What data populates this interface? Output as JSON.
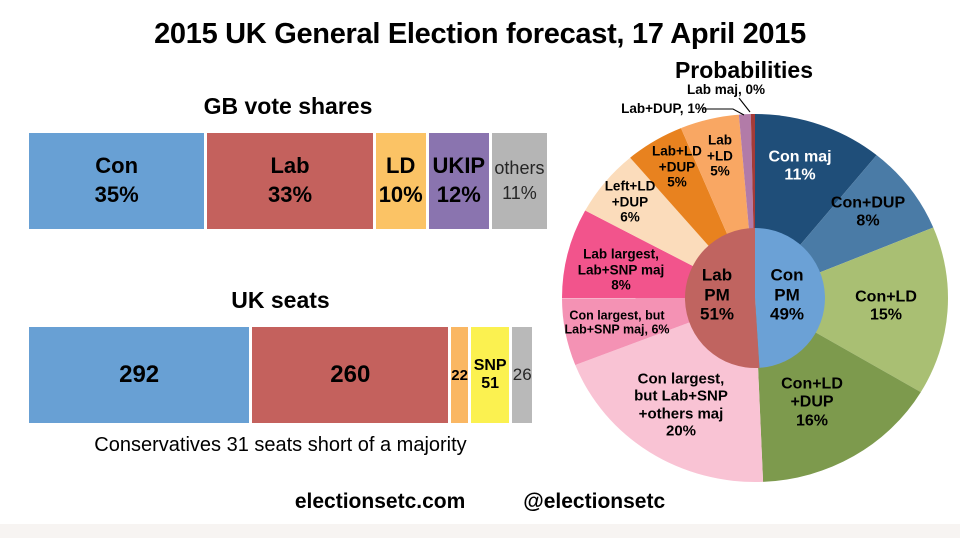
{
  "title": "2015 UK General Election forecast, 17 April 2015",
  "footer": {
    "website": "electionsetc.com",
    "twitter": "@electionsetc"
  },
  "chart_data": [
    {
      "id": "gb_vote_shares",
      "type": "bar",
      "subtype": "horizontal-stacked",
      "title": "GB vote shares",
      "unit": "%",
      "categories": [
        "Con",
        "Lab",
        "LD",
        "UKIP",
        "others"
      ],
      "values": [
        35,
        33,
        10,
        12,
        11
      ],
      "colors": [
        "#68A0D4",
        "#C4615D",
        "#FBC365",
        "#8A74AF",
        "#B5B5B5"
      ],
      "label_lines": [
        [
          "Con",
          "35%"
        ],
        [
          "Lab",
          "33%"
        ],
        [
          "LD",
          "10%"
        ],
        [
          "UKIP",
          "12%"
        ],
        [
          "others",
          "11%"
        ]
      ]
    },
    {
      "id": "uk_seats",
      "type": "bar",
      "subtype": "horizontal-stacked",
      "title": "UK seats",
      "caption": "Conservatives 31 seats short of a majority",
      "unit": "seats",
      "categories": [
        "Con",
        "Lab",
        "LD",
        "SNP",
        "others"
      ],
      "values": [
        292,
        260,
        22,
        51,
        26
      ],
      "colors": [
        "#68A0D4",
        "#C4615D",
        "#FAB763",
        "#FBF150",
        "#B9B9B9"
      ],
      "label_lines": [
        [
          "292"
        ],
        [
          "260"
        ],
        [
          "22"
        ],
        [
          "SNP",
          "51"
        ],
        [
          "26"
        ]
      ]
    },
    {
      "id": "probabilities",
      "type": "pie",
      "subtype": "two-level-donut",
      "title": "Probabilities",
      "inner": {
        "slices": [
          {
            "name": "Con PM",
            "value": 49,
            "pct": "49%",
            "label_lines": [
              "Con",
              "PM",
              "49%"
            ],
            "color": "#6BA1D6"
          },
          {
            "name": "Lab PM",
            "value": 51,
            "pct": "51%",
            "label_lines": [
              "Lab",
              "PM",
              "51%"
            ],
            "color": "#C06460"
          }
        ]
      },
      "outer": {
        "slices": [
          {
            "name": "Con maj",
            "value": 11,
            "pct": "11%",
            "label_lines": [
              "Con maj",
              "11%"
            ],
            "color": "#1F4E79"
          },
          {
            "name": "Con+DUP",
            "value": 8,
            "pct": "8%",
            "label_lines": [
              "Con+DUP",
              "8%"
            ],
            "color": "#4A7BA6"
          },
          {
            "name": "Con+LD",
            "value": 15,
            "pct": "15%",
            "label_lines": [
              "Con+LD",
              "15%"
            ],
            "color": "#A9BF73"
          },
          {
            "name": "Con+LD+DUP",
            "value": 16,
            "pct": "16%",
            "label_lines": [
              "Con+LD",
              "+DUP",
              "16%"
            ],
            "color": "#7D9A4D"
          },
          {
            "name": "Con largest, but Lab+SNP+others maj",
            "value": 20,
            "pct": "20%",
            "label_lines": [
              "Con largest,",
              "but Lab+SNP",
              "+others maj",
              "20%"
            ],
            "color": "#F9C3D4"
          },
          {
            "name": "Con largest, but Lab+SNP maj",
            "value": 6,
            "pct": "6%",
            "label_lines": [
              "Con largest, but",
              "Lab+SNP maj, 6%"
            ],
            "color": "#F492B4"
          },
          {
            "name": "Lab largest, Lab+SNP maj",
            "value": 8,
            "pct": "8%",
            "label_lines": [
              "Lab largest,",
              "Lab+SNP maj",
              "8%"
            ],
            "color": "#F2548C"
          },
          {
            "name": "Left+LD+DUP",
            "value": 6,
            "pct": "6%",
            "label_lines": [
              "Left+LD",
              "+DUP",
              "6%"
            ],
            "color": "#FBDCBB"
          },
          {
            "name": "Lab+LD+DUP",
            "value": 5,
            "pct": "5%",
            "label_lines": [
              "Lab+LD",
              "+DUP",
              "5%"
            ],
            "color": "#E8821F"
          },
          {
            "name": "Lab+LD",
            "value": 5,
            "pct": "5%",
            "label_lines": [
              "Lab",
              "+LD",
              "5%"
            ],
            "color": "#F9A763"
          },
          {
            "name": "Lab+DUP",
            "value": 1,
            "pct": "1%",
            "outside_label": "Lab+DUP, 1%",
            "color": "#B27BA8"
          },
          {
            "name": "Lab maj",
            "value": 0,
            "pct": "0%",
            "outside_label": "Lab maj, 0%",
            "color": "#A43B38"
          }
        ]
      }
    }
  ]
}
